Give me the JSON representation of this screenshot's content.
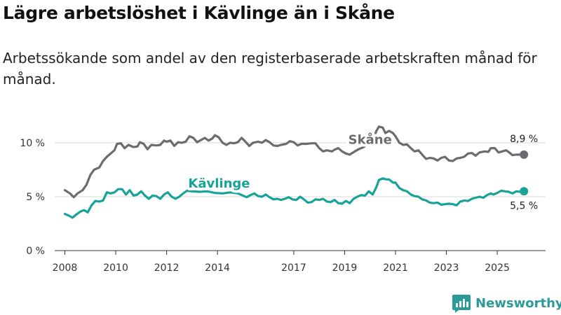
{
  "header": {
    "title": "Lägre arbetslöshet i Kävlinge än i Skåne",
    "subtitle": "Arbetssökande som andel av den registerbaserade arbetskraften månad för månad."
  },
  "brand": {
    "name": "Newsworthy"
  },
  "colors": {
    "skane": "#6b6b70",
    "kavlinge": "#17a398",
    "grid": "#d9d9d9",
    "axis": "#333333",
    "brand": "#2a9b98"
  },
  "chart_data": {
    "type": "line",
    "title": "Lägre arbetslöshet i Kävlinge än i Skåne",
    "xlabel": "",
    "ylabel": "",
    "ylim": [
      0,
      13.5
    ],
    "xlim": [
      2007.6,
      2026.9
    ],
    "y_ticks": [
      0,
      5,
      10
    ],
    "y_tick_labels": [
      "0 %",
      "5 %",
      "10 %"
    ],
    "x_ticks": [
      2008,
      2010,
      2012,
      2014,
      2017,
      2019,
      2021,
      2023,
      2025
    ],
    "x_tick_labels": [
      "2008",
      "2010",
      "2012",
      "2014",
      "2017",
      "2019",
      "2021",
      "2023",
      "2025"
    ],
    "grid": true,
    "series": [
      {
        "name": "Skåne",
        "color": "#6b6b70",
        "end_label": "8,9 %",
        "points": [
          [
            2008.0,
            5.6
          ],
          [
            2008.2,
            5.3
          ],
          [
            2008.35,
            4.95
          ],
          [
            2008.5,
            5.3
          ],
          [
            2008.7,
            5.6
          ],
          [
            2008.85,
            6.1
          ],
          [
            2009.0,
            7.0
          ],
          [
            2009.15,
            7.5
          ],
          [
            2009.35,
            7.7
          ],
          [
            2009.5,
            8.3
          ],
          [
            2009.65,
            8.7
          ],
          [
            2009.8,
            9.0
          ],
          [
            2009.95,
            9.3
          ],
          [
            2010.05,
            9.9
          ],
          [
            2010.2,
            9.95
          ],
          [
            2010.35,
            9.5
          ],
          [
            2010.5,
            9.8
          ],
          [
            2010.7,
            9.6
          ],
          [
            2010.85,
            9.65
          ],
          [
            2010.95,
            10.05
          ],
          [
            2011.1,
            9.9
          ],
          [
            2011.25,
            9.4
          ],
          [
            2011.4,
            9.8
          ],
          [
            2011.6,
            9.75
          ],
          [
            2011.75,
            9.8
          ],
          [
            2011.9,
            10.2
          ],
          [
            2012.0,
            10.1
          ],
          [
            2012.15,
            10.2
          ],
          [
            2012.3,
            9.7
          ],
          [
            2012.45,
            10.05
          ],
          [
            2012.6,
            10.0
          ],
          [
            2012.75,
            10.1
          ],
          [
            2012.9,
            10.6
          ],
          [
            2013.05,
            10.45
          ],
          [
            2013.2,
            10.05
          ],
          [
            2013.35,
            10.25
          ],
          [
            2013.5,
            10.45
          ],
          [
            2013.65,
            10.2
          ],
          [
            2013.8,
            10.4
          ],
          [
            2013.9,
            10.7
          ],
          [
            2014.05,
            10.5
          ],
          [
            2014.2,
            10.0
          ],
          [
            2014.35,
            9.8
          ],
          [
            2014.5,
            10.0
          ],
          [
            2014.65,
            9.95
          ],
          [
            2014.8,
            10.05
          ],
          [
            2014.95,
            10.45
          ],
          [
            2015.1,
            10.1
          ],
          [
            2015.25,
            9.7
          ],
          [
            2015.4,
            10.0
          ],
          [
            2015.6,
            10.1
          ],
          [
            2015.75,
            10.0
          ],
          [
            2015.9,
            10.25
          ],
          [
            2016.05,
            10.05
          ],
          [
            2016.2,
            9.75
          ],
          [
            2016.35,
            9.7
          ],
          [
            2016.5,
            9.8
          ],
          [
            2016.7,
            9.9
          ],
          [
            2016.85,
            10.15
          ],
          [
            2017.0,
            10.05
          ],
          [
            2017.15,
            9.75
          ],
          [
            2017.3,
            9.9
          ],
          [
            2017.5,
            9.9
          ],
          [
            2017.7,
            9.95
          ],
          [
            2017.85,
            9.95
          ],
          [
            2018.0,
            9.5
          ],
          [
            2018.15,
            9.2
          ],
          [
            2018.3,
            9.3
          ],
          [
            2018.5,
            9.2
          ],
          [
            2018.6,
            9.35
          ],
          [
            2018.75,
            9.5
          ],
          [
            2018.9,
            9.2
          ],
          [
            2019.05,
            9.0
          ],
          [
            2019.2,
            8.9
          ],
          [
            2019.4,
            9.2
          ],
          [
            2019.55,
            9.4
          ],
          [
            2019.75,
            9.6
          ],
          [
            2019.9,
            9.9
          ],
          [
            2020.0,
            10.2
          ],
          [
            2020.15,
            10.5
          ],
          [
            2020.25,
            11.1
          ],
          [
            2020.35,
            11.5
          ],
          [
            2020.5,
            11.4
          ],
          [
            2020.6,
            10.9
          ],
          [
            2020.75,
            11.1
          ],
          [
            2020.9,
            10.9
          ],
          [
            2021.0,
            10.6
          ],
          [
            2021.15,
            10.0
          ],
          [
            2021.3,
            9.8
          ],
          [
            2021.45,
            9.85
          ],
          [
            2021.6,
            9.5
          ],
          [
            2021.75,
            9.2
          ],
          [
            2021.9,
            9.3
          ],
          [
            2022.05,
            8.9
          ],
          [
            2022.2,
            8.5
          ],
          [
            2022.35,
            8.6
          ],
          [
            2022.5,
            8.55
          ],
          [
            2022.65,
            8.35
          ],
          [
            2022.8,
            8.6
          ],
          [
            2022.95,
            8.7
          ],
          [
            2023.1,
            8.35
          ],
          [
            2023.25,
            8.3
          ],
          [
            2023.4,
            8.55
          ],
          [
            2023.55,
            8.6
          ],
          [
            2023.7,
            8.7
          ],
          [
            2023.85,
            9.0
          ],
          [
            2024.0,
            9.05
          ],
          [
            2024.15,
            8.8
          ],
          [
            2024.3,
            9.1
          ],
          [
            2024.5,
            9.2
          ],
          [
            2024.65,
            9.15
          ],
          [
            2024.75,
            9.5
          ],
          [
            2024.9,
            9.5
          ],
          [
            2025.05,
            9.1
          ],
          [
            2025.2,
            9.2
          ],
          [
            2025.35,
            9.3
          ],
          [
            2025.5,
            9.05
          ],
          [
            2025.6,
            8.85
          ],
          [
            2025.75,
            8.9
          ],
          [
            2026.05,
            8.9
          ]
        ]
      },
      {
        "name": "Kävlinge",
        "color": "#17a398",
        "end_label": "5,5 %",
        "points": [
          [
            2008.0,
            3.4
          ],
          [
            2008.15,
            3.25
          ],
          [
            2008.3,
            3.05
          ],
          [
            2008.45,
            3.35
          ],
          [
            2008.6,
            3.6
          ],
          [
            2008.75,
            3.75
          ],
          [
            2008.9,
            3.55
          ],
          [
            2009.05,
            4.2
          ],
          [
            2009.2,
            4.6
          ],
          [
            2009.35,
            4.55
          ],
          [
            2009.5,
            4.65
          ],
          [
            2009.65,
            5.4
          ],
          [
            2009.8,
            5.3
          ],
          [
            2009.95,
            5.4
          ],
          [
            2010.1,
            5.7
          ],
          [
            2010.25,
            5.7
          ],
          [
            2010.4,
            5.2
          ],
          [
            2010.55,
            5.6
          ],
          [
            2010.7,
            5.1
          ],
          [
            2010.85,
            5.2
          ],
          [
            2011.0,
            5.5
          ],
          [
            2011.15,
            5.1
          ],
          [
            2011.3,
            4.8
          ],
          [
            2011.45,
            5.1
          ],
          [
            2011.6,
            5.05
          ],
          [
            2011.75,
            4.8
          ],
          [
            2011.9,
            5.2
          ],
          [
            2012.05,
            5.4
          ],
          [
            2012.2,
            5.0
          ],
          [
            2012.35,
            4.8
          ],
          [
            2012.5,
            5.0
          ],
          [
            2012.65,
            5.3
          ],
          [
            2012.8,
            5.55
          ],
          [
            2013.0,
            5.5
          ],
          [
            2013.3,
            5.45
          ],
          [
            2013.6,
            5.5
          ],
          [
            2013.9,
            5.35
          ],
          [
            2014.2,
            5.3
          ],
          [
            2014.5,
            5.4
          ],
          [
            2014.8,
            5.3
          ],
          [
            2015.0,
            5.1
          ],
          [
            2015.15,
            4.95
          ],
          [
            2015.3,
            5.15
          ],
          [
            2015.45,
            5.3
          ],
          [
            2015.6,
            5.05
          ],
          [
            2015.75,
            5.0
          ],
          [
            2015.9,
            5.2
          ],
          [
            2016.05,
            4.95
          ],
          [
            2016.2,
            4.75
          ],
          [
            2016.35,
            4.8
          ],
          [
            2016.5,
            4.7
          ],
          [
            2016.65,
            4.8
          ],
          [
            2016.8,
            4.95
          ],
          [
            2016.95,
            4.75
          ],
          [
            2017.1,
            4.7
          ],
          [
            2017.25,
            5.0
          ],
          [
            2017.4,
            4.75
          ],
          [
            2017.55,
            4.45
          ],
          [
            2017.7,
            4.5
          ],
          [
            2017.85,
            4.75
          ],
          [
            2018.0,
            4.7
          ],
          [
            2018.15,
            4.8
          ],
          [
            2018.3,
            4.55
          ],
          [
            2018.45,
            4.5
          ],
          [
            2018.6,
            4.7
          ],
          [
            2018.75,
            4.4
          ],
          [
            2018.9,
            4.35
          ],
          [
            2019.05,
            4.6
          ],
          [
            2019.2,
            4.4
          ],
          [
            2019.35,
            4.8
          ],
          [
            2019.5,
            5.0
          ],
          [
            2019.65,
            5.15
          ],
          [
            2019.8,
            5.1
          ],
          [
            2019.95,
            5.5
          ],
          [
            2020.1,
            5.2
          ],
          [
            2020.25,
            5.9
          ],
          [
            2020.35,
            6.55
          ],
          [
            2020.5,
            6.7
          ],
          [
            2020.65,
            6.6
          ],
          [
            2020.75,
            6.6
          ],
          [
            2020.9,
            6.3
          ],
          [
            2021.0,
            6.3
          ],
          [
            2021.15,
            5.8
          ],
          [
            2021.3,
            5.6
          ],
          [
            2021.45,
            5.5
          ],
          [
            2021.6,
            5.2
          ],
          [
            2021.75,
            5.05
          ],
          [
            2021.9,
            5.0
          ],
          [
            2022.05,
            4.75
          ],
          [
            2022.2,
            4.65
          ],
          [
            2022.35,
            4.45
          ],
          [
            2022.5,
            4.4
          ],
          [
            2022.65,
            4.45
          ],
          [
            2022.8,
            4.25
          ],
          [
            2022.95,
            4.3
          ],
          [
            2023.1,
            4.35
          ],
          [
            2023.25,
            4.3
          ],
          [
            2023.4,
            4.2
          ],
          [
            2023.55,
            4.55
          ],
          [
            2023.7,
            4.65
          ],
          [
            2023.85,
            4.6
          ],
          [
            2024.0,
            4.8
          ],
          [
            2024.15,
            4.9
          ],
          [
            2024.3,
            5.0
          ],
          [
            2024.45,
            4.9
          ],
          [
            2024.6,
            5.15
          ],
          [
            2024.75,
            5.3
          ],
          [
            2024.85,
            5.2
          ],
          [
            2025.0,
            5.35
          ],
          [
            2025.15,
            5.55
          ],
          [
            2025.3,
            5.5
          ],
          [
            2025.45,
            5.45
          ],
          [
            2025.6,
            5.3
          ],
          [
            2025.75,
            5.5
          ],
          [
            2025.9,
            5.45
          ],
          [
            2026.05,
            5.5
          ]
        ]
      }
    ]
  }
}
